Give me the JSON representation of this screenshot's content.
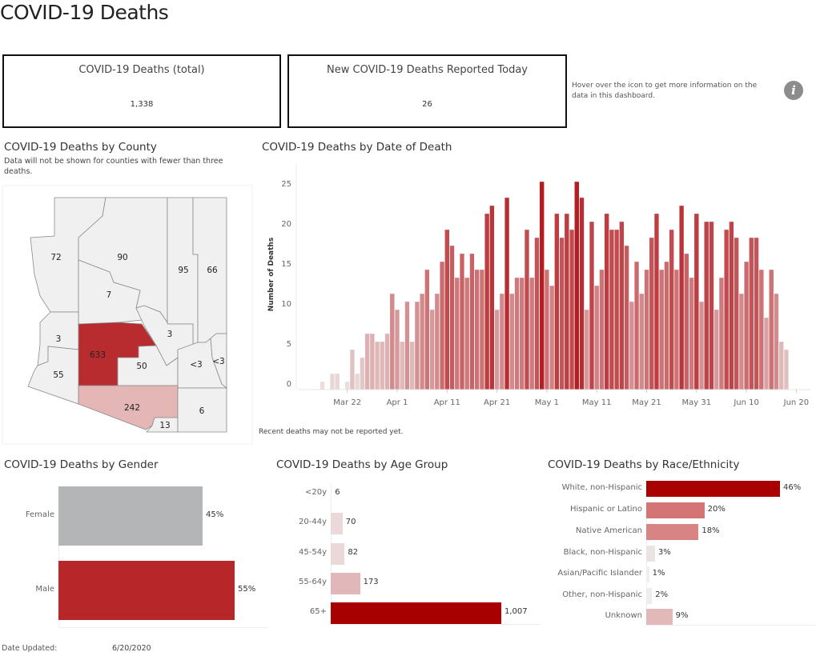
{
  "header": {
    "title": "COVID-19 Deaths"
  },
  "kpis": [
    {
      "label": "COVID-19 Deaths (total)",
      "value": "1,338"
    },
    {
      "label": "New COVID-19 Deaths Reported Today",
      "value": "26"
    }
  ],
  "info": {
    "text": "Hover over the icon to get more information on the data in this dashboard.",
    "icon": "info-icon",
    "icon_glyph": "i"
  },
  "county_map": {
    "title": "COVID-19 Deaths by County",
    "note": "Data will not be shown for counties with fewer than three deaths.",
    "labels": [
      "72",
      "90",
      "95",
      "66",
      "7",
      "3",
      "3",
      "633",
      "50",
      "<3",
      "<3",
      "55",
      "242",
      "13",
      "6"
    ],
    "colors": {
      "high": "#b82c2f",
      "mid": "#e4b6b6",
      "low": "#f0f0f0"
    }
  },
  "footer": {
    "date_label": "Date Updated:",
    "date_value": "6/20/2020"
  },
  "chart_data": [
    {
      "type": "bar",
      "title": "COVID-19 Deaths by Date of Death",
      "ylabel": "Number of Deaths",
      "xlabel": "",
      "ylim": [
        0,
        27
      ],
      "yticks": [
        0,
        5,
        10,
        15,
        20,
        25
      ],
      "xticks": [
        "Mar 22",
        "Apr 1",
        "Apr 11",
        "Apr 21",
        "May 1",
        "May 11",
        "May 21",
        "May 31",
        "Jun 10",
        "Jun 20"
      ],
      "xtick_dates": [
        "2020-03-22",
        "2020-04-01",
        "2020-04-11",
        "2020-04-21",
        "2020-05-01",
        "2020-05-11",
        "2020-05-21",
        "2020-05-31",
        "2020-06-10",
        "2020-06-20"
      ],
      "note": "Recent deaths may not be reported yet.",
      "color_low": "#ece6e6",
      "color_high": "#b41e23",
      "x": [
        "2020-03-17",
        "2020-03-19",
        "2020-03-20",
        "2020-03-22",
        "2020-03-23",
        "2020-03-24",
        "2020-03-25",
        "2020-03-26",
        "2020-03-27",
        "2020-03-28",
        "2020-03-29",
        "2020-03-30",
        "2020-03-31",
        "2020-04-01",
        "2020-04-02",
        "2020-04-03",
        "2020-04-04",
        "2020-04-05",
        "2020-04-06",
        "2020-04-07",
        "2020-04-08",
        "2020-04-09",
        "2020-04-10",
        "2020-04-11",
        "2020-04-12",
        "2020-04-13",
        "2020-04-14",
        "2020-04-15",
        "2020-04-16",
        "2020-04-17",
        "2020-04-18",
        "2020-04-19",
        "2020-04-20",
        "2020-04-21",
        "2020-04-22",
        "2020-04-23",
        "2020-04-24",
        "2020-04-25",
        "2020-04-26",
        "2020-04-27",
        "2020-04-28",
        "2020-04-29",
        "2020-04-30",
        "2020-05-01",
        "2020-05-02",
        "2020-05-03",
        "2020-05-04",
        "2020-05-05",
        "2020-05-06",
        "2020-05-07",
        "2020-05-08",
        "2020-05-09",
        "2020-05-10",
        "2020-05-11",
        "2020-05-12",
        "2020-05-13",
        "2020-05-14",
        "2020-05-15",
        "2020-05-16",
        "2020-05-17",
        "2020-05-18",
        "2020-05-19",
        "2020-05-20",
        "2020-05-21",
        "2020-05-22",
        "2020-05-23",
        "2020-05-24",
        "2020-05-25",
        "2020-05-26",
        "2020-05-27",
        "2020-05-28",
        "2020-05-29",
        "2020-05-30",
        "2020-05-31",
        "2020-06-01",
        "2020-06-02",
        "2020-06-03",
        "2020-06-04",
        "2020-06-05",
        "2020-06-06",
        "2020-06-07",
        "2020-06-08",
        "2020-06-09",
        "2020-06-10",
        "2020-06-11",
        "2020-06-12",
        "2020-06-13",
        "2020-06-14",
        "2020-06-15",
        "2020-06-16",
        "2020-06-17",
        "2020-06-18"
      ],
      "values": [
        1,
        2,
        2,
        1,
        5,
        2,
        4,
        7,
        7,
        6,
        6,
        7,
        12,
        10,
        6,
        11,
        6,
        11,
        12,
        15,
        10,
        12,
        16,
        20,
        18,
        14,
        17,
        14,
        17,
        15,
        15,
        22,
        23,
        10,
        12,
        24,
        12,
        14,
        14,
        20,
        14,
        19,
        26,
        15,
        13,
        22,
        19,
        22,
        20,
        26,
        24,
        10,
        21,
        13,
        15,
        22,
        20,
        20,
        21,
        18,
        11,
        16,
        12,
        15,
        19,
        22,
        15,
        16,
        20,
        15,
        23,
        17,
        14,
        22,
        11,
        21,
        21,
        10,
        14,
        20,
        21,
        19,
        12,
        16,
        19,
        19,
        15,
        9,
        15,
        12,
        6,
        5
      ]
    },
    {
      "type": "bar",
      "title": "COVID-19 Deaths by Gender",
      "categories": [
        "Female",
        "Male"
      ],
      "values": [
        45,
        55
      ],
      "labels": [
        "45%",
        "55%"
      ],
      "colors": [
        "#b3b5b6",
        "#b7272a"
      ]
    },
    {
      "type": "bar",
      "title": "COVID-19 Deaths by Age Group",
      "categories": [
        "<20y",
        "20-44y",
        "45-54y",
        "55-64y",
        "65+"
      ],
      "values": [
        6,
        70,
        82,
        173,
        1007
      ],
      "labels": [
        "6",
        "70",
        "82",
        "173",
        "1,007"
      ],
      "colors": [
        "#f3eded",
        "#ebd9da",
        "#ebd9da",
        "#e2b7b9",
        "#a90000"
      ]
    },
    {
      "type": "bar",
      "title": "COVID-19 Deaths by Race/Ethnicity",
      "categories": [
        "White, non-Hispanic",
        "Hispanic or Latino",
        "Native American",
        "Black, non-Hispanic",
        "Asian/Pacific Islander",
        "Other, non-Hispanic",
        "Unknown"
      ],
      "values": [
        46,
        20,
        18,
        3,
        1,
        2,
        9
      ],
      "labels": [
        "46%",
        "20%",
        "18%",
        "3%",
        "1%",
        "2%",
        "9%"
      ],
      "colors": [
        "#a90000",
        "#d47475",
        "#d88384",
        "#ece3e3",
        "#efefef",
        "#ededed",
        "#e2b8b8"
      ]
    }
  ]
}
